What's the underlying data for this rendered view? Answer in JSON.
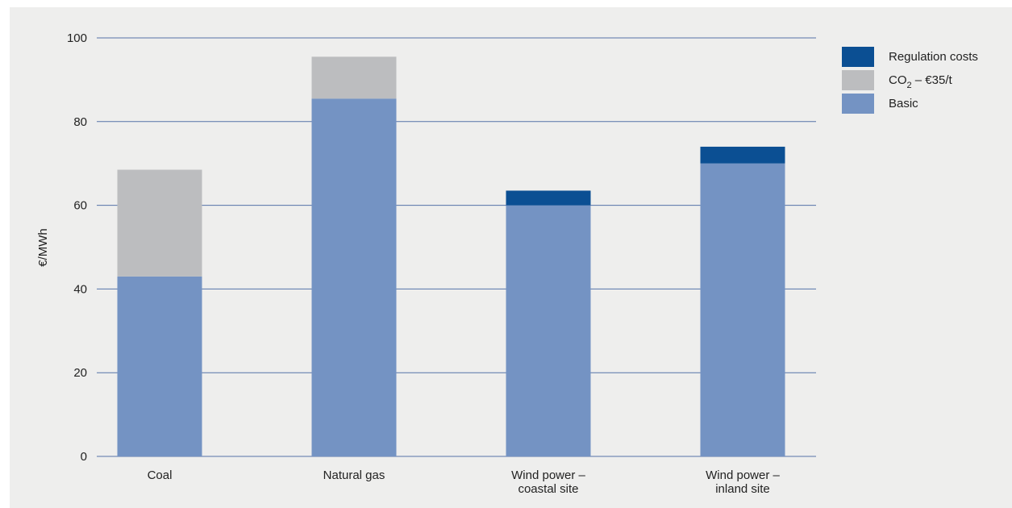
{
  "chart_data": {
    "type": "bar",
    "stacked": true,
    "title": "",
    "xlabel": "",
    "ylabel": "€/MWh",
    "ylim": [
      0,
      100
    ],
    "yticks": [
      0,
      20,
      40,
      60,
      80,
      100
    ],
    "grid": true,
    "legend_position": "top-right",
    "categories": [
      [
        "Coal"
      ],
      [
        "Natural gas"
      ],
      [
        "Wind power –",
        "coastal site"
      ],
      [
        "Wind power –",
        "inland site"
      ]
    ],
    "series": [
      {
        "name": "Basic",
        "color": "#7493c3",
        "values": [
          43,
          85.5,
          60,
          70
        ]
      },
      {
        "name": "CO2 – €35/t",
        "label_main": "CO",
        "label_sub": "2",
        "label_rest": " – €35/t",
        "color": "#bcbdbf",
        "values": [
          25.5,
          10,
          0,
          0
        ]
      },
      {
        "name": "Regulation costs",
        "color": "#0b4f93",
        "values": [
          0,
          0,
          3.5,
          4
        ]
      }
    ],
    "legend_order": [
      2,
      1,
      0
    ]
  }
}
